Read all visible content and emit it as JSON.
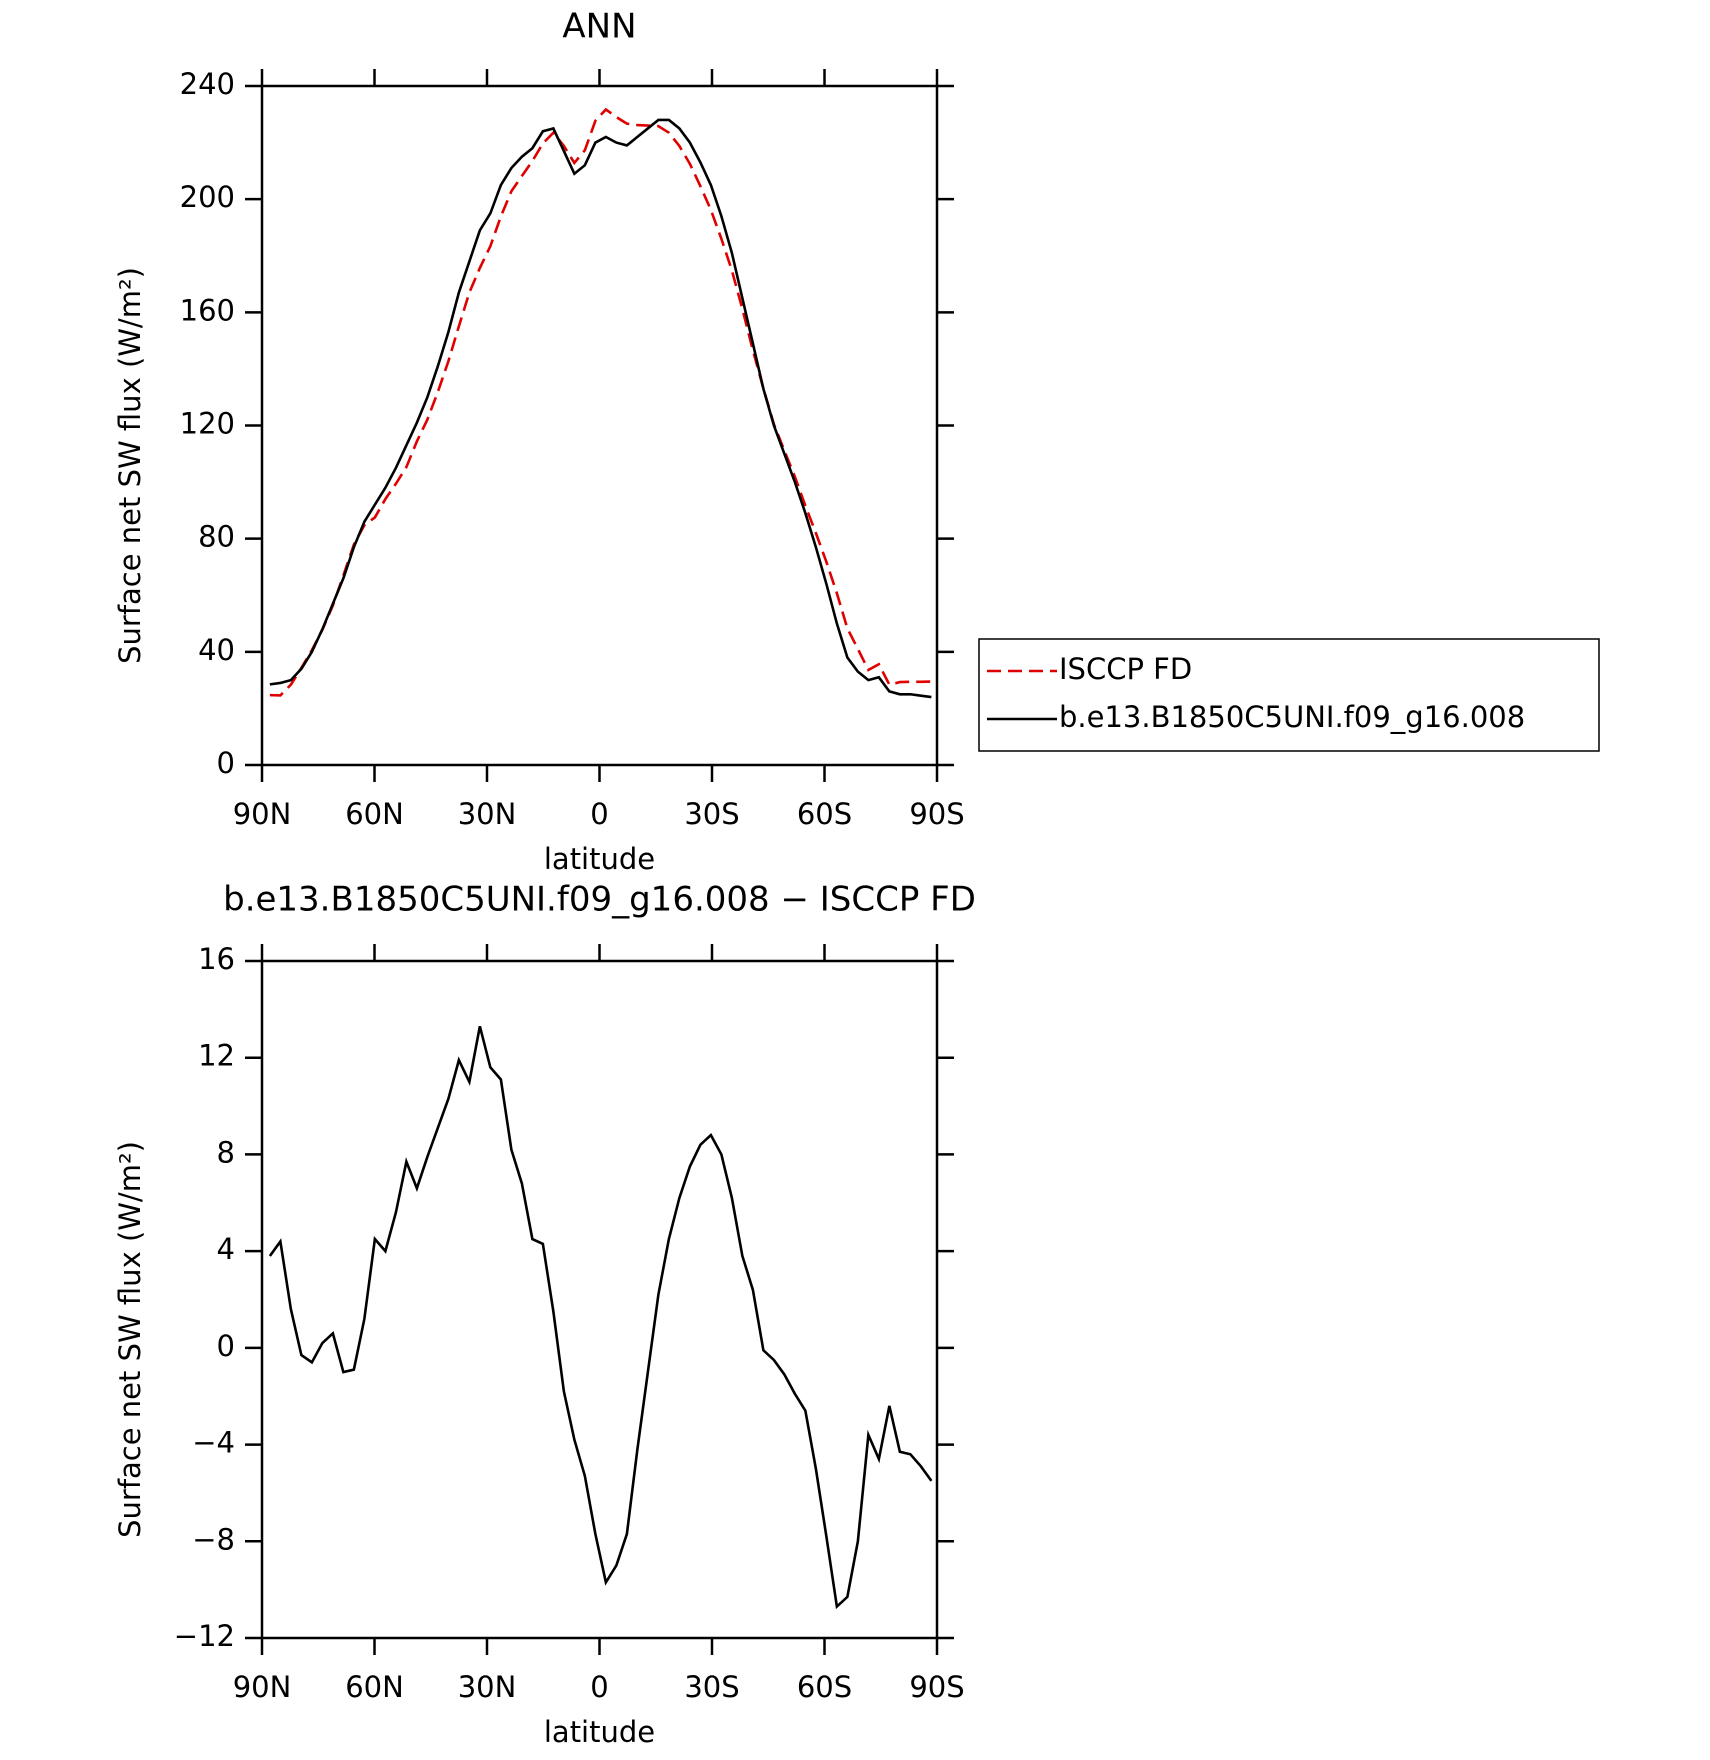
{
  "chart_data": [
    {
      "type": "line",
      "title": "ANN",
      "xlabel": "latitude",
      "ylabel": "Surface net SW flux (W/m²)",
      "x": [
        87.9,
        85.1,
        82.3,
        79.5,
        76.7,
        73.9,
        71.1,
        68.3,
        65.5,
        62.7,
        59.9,
        57.1,
        54.3,
        51.5,
        48.7,
        45.9,
        43.1,
        40.3,
        37.5,
        34.7,
        31.9,
        29.1,
        26.3,
        23.5,
        20.7,
        17.9,
        15.1,
        12.3,
        9.5,
        6.7,
        3.9,
        1.1,
        -1.7,
        -4.5,
        -7.3,
        -10.1,
        -12.9,
        -15.7,
        -18.5,
        -21.3,
        -24.1,
        -26.9,
        -29.7,
        -32.5,
        -35.3,
        -38.1,
        -40.9,
        -43.7,
        -46.5,
        -49.3,
        -52.1,
        -54.9,
        -57.7,
        -60.5,
        -63.3,
        -66.1,
        -68.9,
        -71.7,
        -74.5,
        -77.3,
        -80.1,
        -82.9,
        -85.7,
        -88.5
      ],
      "series": [
        {
          "name": "ISCCP FD",
          "color": "#e00000",
          "dashed": true,
          "values": [
            24.7,
            24.6,
            28.4,
            34.3,
            40.6,
            47.8,
            56.4,
            67,
            77.9,
            84.8,
            87.5,
            94,
            99.4,
            105.3,
            114.4,
            122.1,
            131.9,
            142.7,
            155.1,
            167,
            175.7,
            183.4,
            193.9,
            202.8,
            208.2,
            213.5,
            219.7,
            223.5,
            218.8,
            212.8,
            217.3,
            227.7,
            231.7,
            229,
            226.7,
            226.2,
            226,
            225.8,
            223.5,
            218.8,
            212.5,
            204.6,
            196.2,
            186,
            174.8,
            161.2,
            146.6,
            133.1,
            120.5,
            111.1,
            101.9,
            91.6,
            82,
            71.8,
            60.7,
            48.3,
            41,
            33.6,
            35.6,
            28.4,
            29.3,
            29.4,
            29.4,
            29.5
          ]
        },
        {
          "name": "b.e13.B1850C5UNI.f09_g16.008",
          "color": "#000000",
          "dashed": false,
          "values": [
            28.5,
            29,
            30,
            34,
            40,
            48,
            57,
            66,
            77,
            86,
            92,
            98,
            105,
            113,
            121,
            130,
            141,
            153,
            167,
            178,
            189,
            195,
            205,
            211,
            215,
            218,
            224,
            225,
            217,
            209,
            212,
            220,
            222,
            220,
            219,
            222,
            225,
            228,
            228,
            225,
            220,
            213,
            205,
            194,
            181,
            165,
            149,
            133,
            120,
            110,
            100,
            89,
            77,
            64,
            50,
            38,
            33,
            30,
            31,
            26,
            25,
            25,
            24.5,
            24
          ]
        }
      ],
      "xlim": [
        90,
        -90
      ],
      "xticks": [
        {
          "value": 90,
          "label": "90N"
        },
        {
          "value": 60,
          "label": "60N"
        },
        {
          "value": 30,
          "label": "30N"
        },
        0,
        {
          "value": -30,
          "label": "30S"
        },
        {
          "value": -60,
          "label": "60S"
        },
        {
          "value": -90,
          "label": "90S"
        }
      ],
      "ylim": [
        0,
        240
      ],
      "yticks": [
        0,
        40,
        80,
        120,
        160,
        200,
        240
      ],
      "legend": "right"
    },
    {
      "type": "line",
      "title": "b.e13.B1850C5UNI.f09_g16.008 − ISCCP FD",
      "xlabel": "latitude",
      "ylabel": "Surface net SW flux (W/m²)",
      "x": [
        87.9,
        85.1,
        82.3,
        79.5,
        76.7,
        73.9,
        71.1,
        68.3,
        65.5,
        62.7,
        59.9,
        57.1,
        54.3,
        51.5,
        48.7,
        45.9,
        43.1,
        40.3,
        37.5,
        34.7,
        31.9,
        29.1,
        26.3,
        23.5,
        20.7,
        17.9,
        15.1,
        12.3,
        9.5,
        6.7,
        3.9,
        1.1,
        -1.7,
        -4.5,
        -7.3,
        -10.1,
        -12.9,
        -15.7,
        -18.5,
        -21.3,
        -24.1,
        -26.9,
        -29.7,
        -32.5,
        -35.3,
        -38.1,
        -40.9,
        -43.7,
        -46.5,
        -49.3,
        -52.1,
        -54.9,
        -57.7,
        -60.5,
        -63.3,
        -66.1,
        -68.9,
        -71.7,
        -74.5,
        -77.3,
        -80.1,
        -82.9,
        -85.7,
        -88.5
      ],
      "series": [
        {
          "color": "#000000",
          "dashed": false,
          "values": [
            3.8,
            4.4,
            1.6,
            -0.3,
            -0.6,
            0.2,
            0.6,
            -1.0,
            -0.9,
            1.2,
            4.5,
            4.0,
            5.6,
            7.7,
            6.6,
            7.9,
            9.1,
            10.3,
            11.9,
            11.0,
            13.3,
            11.6,
            11.1,
            8.2,
            6.8,
            4.5,
            4.3,
            1.5,
            -1.8,
            -3.8,
            -5.3,
            -7.7,
            -9.7,
            -9.0,
            -7.7,
            -4.2,
            -1.0,
            2.2,
            4.5,
            6.2,
            7.5,
            8.4,
            8.8,
            8.0,
            6.2,
            3.8,
            2.4,
            -0.1,
            -0.5,
            -1.1,
            -1.9,
            -2.6,
            -5.0,
            -7.8,
            -10.7,
            -10.3,
            -8.0,
            -3.6,
            -4.6,
            -2.4,
            -4.3,
            -4.4,
            -4.9,
            -5.5
          ]
        }
      ],
      "xlim": [
        90,
        -90
      ],
      "xticks": [
        {
          "value": 90,
          "label": "90N"
        },
        {
          "value": 60,
          "label": "60N"
        },
        {
          "value": 30,
          "label": "30N"
        },
        0,
        {
          "value": -30,
          "label": "30S"
        },
        {
          "value": -60,
          "label": "60S"
        },
        {
          "value": -90,
          "label": "90S"
        }
      ],
      "ylim": [
        -12,
        16
      ],
      "yticks": [
        {
          "value": -12,
          "label": "−12"
        },
        {
          "value": -8,
          "label": "−8"
        },
        {
          "value": -4,
          "label": "−4"
        },
        0,
        4,
        8,
        12,
        16
      ]
    }
  ]
}
